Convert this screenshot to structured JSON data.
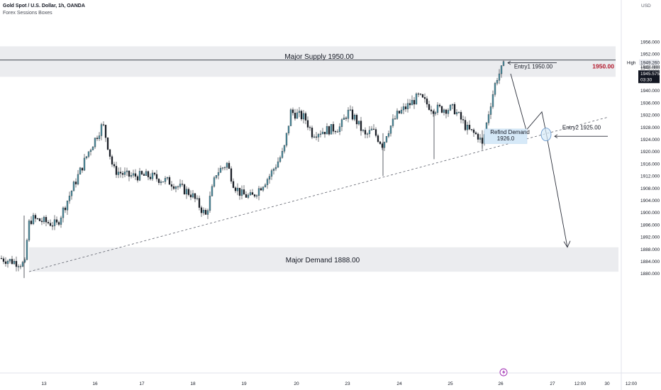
{
  "header": {
    "symbol_title": "Gold Spot / U.S. Dollar, 1h, OANDA",
    "indicator": "Forex Sessions Boxes"
  },
  "chart_data": {
    "type": "candlestick",
    "title": "Gold Spot / U.S. Dollar, 1h, OANDA",
    "currency_label": "USD",
    "y_range": [
      1877,
      1962
    ],
    "y_ticks": [
      "1956.000",
      "1952.000",
      "1948.000",
      "1944.000",
      "1940.000",
      "1936.000",
      "1932.000",
      "1928.000",
      "1924.000",
      "1920.000",
      "1916.000",
      "1912.000",
      "1908.000",
      "1904.000",
      "1900.000",
      "1896.000",
      "1892.000",
      "1888.000",
      "1884.000",
      "1880.000"
    ],
    "x_ticks": [
      "13",
      "16",
      "17",
      "18",
      "19",
      "20",
      "23",
      "24",
      "25",
      "26",
      "27",
      "12:00",
      "30",
      "12:00"
    ],
    "grid": false,
    "approx_close_path": [
      {
        "date": "Oct 12",
        "price": 1885
      },
      {
        "date": "Oct 13",
        "price": 1896
      },
      {
        "date": "Oct 16",
        "price": 1929
      },
      {
        "date": "Oct 17",
        "price": 1912
      },
      {
        "date": "Oct 18",
        "price": 1899
      },
      {
        "date": "Oct 19",
        "price": 1905
      },
      {
        "date": "Oct 19",
        "price": 1912
      },
      {
        "date": "Oct 20",
        "price": 1931
      },
      {
        "date": "Oct 23",
        "price": 1926
      },
      {
        "date": "Oct 24",
        "price": 1933
      },
      {
        "date": "Oct 25",
        "price": 1931
      },
      {
        "date": "Oct 26",
        "price": 1948
      }
    ],
    "price_labels": {
      "high_label": "High",
      "high_value": "1949.260",
      "ask_value": "1948.000",
      "last_value": "1945.575",
      "countdown": "03:30"
    },
    "annotations": {
      "supply_zone": {
        "label": "Major Supply 1950.00",
        "top": 1954.5,
        "bottom": 1944.5
      },
      "demand_zone": {
        "label": "Major Demand 1888.00",
        "top": 1888.6,
        "bottom": 1880.6
      },
      "horizontal_level": {
        "label": "1950.00",
        "price": 1950.0,
        "color": "#b2182b"
      },
      "refined_demand": {
        "label": "Refind Demand",
        "value": "1926.0"
      },
      "entry1": {
        "label": "Entry1 1950.00"
      },
      "entry2": {
        "label": "Entry2 1925.00"
      }
    }
  }
}
